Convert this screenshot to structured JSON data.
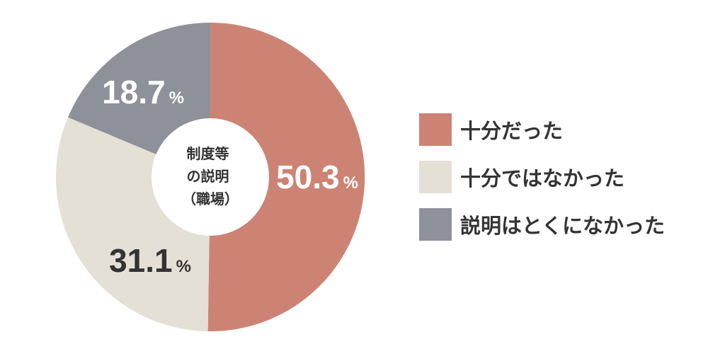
{
  "chart_data": {
    "type": "pie",
    "donut": true,
    "center_label": [
      "制度等",
      "の説明",
      "（職場）"
    ],
    "unit": "%",
    "slices": [
      {
        "label": "十分だった",
        "value": 50.3,
        "display": "50.3",
        "color": "#cd8374",
        "label_color": "#ffffff"
      },
      {
        "label": "十分ではなかった",
        "value": 31.1,
        "display": "31.1",
        "color": "#e4e0d6",
        "label_color": "#333333"
      },
      {
        "label": "説明はとくになかった",
        "value": 18.7,
        "display": "18.7",
        "color": "#8f919a",
        "label_color": "#ffffff"
      }
    ],
    "legend_position": "right"
  }
}
